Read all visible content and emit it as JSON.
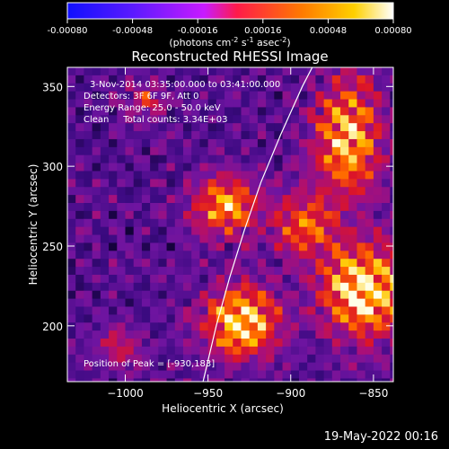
{
  "colorbar": {
    "tick_labels": [
      "-0.00080",
      "-0.00048",
      "-0.00016",
      "0.00016",
      "0.00048",
      "0.00080"
    ],
    "range": [
      -0.0008,
      0.0008
    ],
    "units_main": "(photons cm",
    "units_sup1": "-2",
    "units_mid": " s",
    "units_sup2": "-1",
    "units_mid2": " asec",
    "units_sup3": "-2",
    "units_end": ")"
  },
  "chart_data": {
    "type": "heatmap",
    "title": "Reconstructed RHESSI Image",
    "xlabel": "Heliocentric X (arcsec)",
    "ylabel": "Heliocentric Y (arcsec)",
    "xlim": [
      -1035,
      -838
    ],
    "ylim": [
      165,
      362
    ],
    "xticks": [
      -1000,
      -950,
      -900,
      -850
    ],
    "yticks": [
      200,
      250,
      300,
      350
    ],
    "xtick_labels": [
      "−1000",
      "−950",
      "−900",
      "−850"
    ],
    "ytick_labels": [
      "200",
      "250",
      "300",
      "350"
    ],
    "limb": [
      [
        -953,
        165
      ],
      [
        -945,
        200
      ],
      [
        -937,
        230
      ],
      [
        -928,
        260
      ],
      [
        -918,
        290
      ],
      [
        -906,
        320
      ],
      [
        -893,
        350
      ],
      [
        -887,
        362
      ]
    ],
    "sources": [
      {
        "x": -942,
        "y": 278,
        "amp": 0.75,
        "sx": 20,
        "sy": 18
      },
      {
        "x": -932,
        "y": 205,
        "amp": 0.95,
        "sx": 22,
        "sy": 22
      },
      {
        "x": -858,
        "y": 225,
        "amp": 1.0,
        "sx": 26,
        "sy": 28
      },
      {
        "x": -868,
        "y": 320,
        "amp": 0.85,
        "sx": 20,
        "sy": 36
      },
      {
        "x": -895,
        "y": 265,
        "amp": 0.6,
        "sx": 18,
        "sy": 20
      },
      {
        "x": -1005,
        "y": 190,
        "amp": 0.35,
        "sx": 14,
        "sy": 14
      },
      {
        "x": -990,
        "y": 345,
        "amp": 0.4,
        "sx": 12,
        "sy": 10
      }
    ],
    "annotations": {
      "time_range": "3-Nov-2014 03:35:00.000 to 03:41:00.000",
      "detectors": "Detectors: 3F 6F 9F, Att 0",
      "energy": "Energy Range: 25.0 - 50.0 keV",
      "clean": "Clean     Total counts: 3.34E+03",
      "peak": "Position of Peak = [-930,183]"
    }
  },
  "footer": {
    "date": "19-May-2022 00:16"
  }
}
